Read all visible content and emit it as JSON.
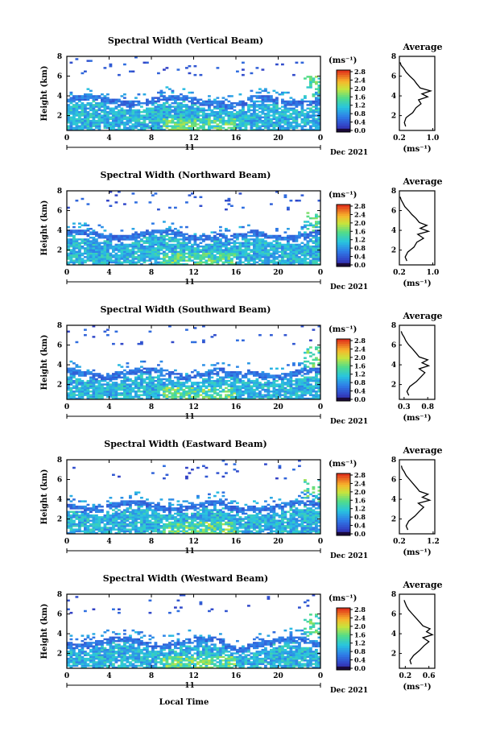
{
  "figure": {
    "x_axis_label": "Local Time",
    "day_label": "11",
    "date_label": "Dec 2021",
    "y_axis_label": "Height (km)",
    "unit_label": "(ms⁻¹)",
    "average_title": "Average"
  },
  "chart_data": [
    {
      "type": "heatmap",
      "title": "Spectral Width (Vertical Beam)",
      "xlabel": "",
      "ylabel": "Height (km)",
      "xlim": [
        0,
        24
      ],
      "ylim": [
        0.5,
        8
      ],
      "x_ticks": [
        "0",
        "4",
        "8",
        "12",
        "16",
        "20",
        "0"
      ],
      "y_ticks": [
        "2",
        "4",
        "6",
        "8"
      ],
      "colorbar": {
        "label": "(ms⁻¹)",
        "range": [
          0,
          2.8
        ],
        "ticks": [
          "0.0",
          "0.4",
          "0.8",
          "1.2",
          "1.6",
          "2.0",
          "2.4",
          "2.8"
        ]
      },
      "echo_top_km": 3.8,
      "average_profile": {
        "title": "Average",
        "xlabel": "(ms⁻¹)",
        "xlim": [
          0.2,
          1.05
        ],
        "x_ticks": [
          "0.2",
          "1.0"
        ],
        "y_ticks": [
          "2",
          "4",
          "6",
          "8"
        ],
        "ylim": [
          0.5,
          8
        ],
        "h": [
          0.9,
          1.3,
          1.8,
          2.3,
          2.8,
          3.2,
          3.6,
          3.9,
          4.2,
          4.5,
          4.8,
          5.2,
          5.6,
          6.0,
          6.4,
          6.8,
          7.1,
          7.4
        ],
        "w": [
          0.35,
          0.32,
          0.36,
          0.52,
          0.6,
          0.72,
          0.66,
          0.88,
          0.74,
          0.95,
          0.7,
          0.62,
          0.55,
          0.45,
          0.36,
          0.3,
          0.24,
          0.22
        ]
      }
    },
    {
      "type": "heatmap",
      "title": "Spectral Width (Northward Beam)",
      "xlabel": "",
      "ylabel": "Height (km)",
      "xlim": [
        0,
        24
      ],
      "ylim": [
        0.5,
        8
      ],
      "x_ticks": [
        "0",
        "4",
        "8",
        "12",
        "16",
        "20",
        "0"
      ],
      "y_ticks": [
        "2",
        "4",
        "6",
        "8"
      ],
      "colorbar": {
        "label": "(ms⁻¹)",
        "range": [
          0,
          2.8
        ],
        "ticks": [
          "0.0",
          "0.4",
          "0.8",
          "1.2",
          "1.6",
          "2.0",
          "2.4",
          "2.8"
        ]
      },
      "echo_top_km": 3.8,
      "average_profile": {
        "title": "Average",
        "xlabel": "(ms⁻¹)",
        "xlim": [
          0.2,
          1.05
        ],
        "x_ticks": [
          "0.2",
          "1.0"
        ],
        "y_ticks": [
          "2",
          "4",
          "6",
          "8"
        ],
        "ylim": [
          0.5,
          8
        ],
        "h": [
          0.9,
          1.3,
          1.8,
          2.3,
          2.8,
          3.2,
          3.6,
          3.9,
          4.2,
          4.5,
          4.8,
          5.2,
          5.6,
          6.0,
          6.4,
          6.8,
          7.1,
          7.4
        ],
        "w": [
          0.38,
          0.34,
          0.4,
          0.55,
          0.62,
          0.78,
          0.64,
          0.9,
          0.7,
          0.86,
          0.68,
          0.6,
          0.5,
          0.42,
          0.33,
          0.28,
          0.24,
          0.22
        ]
      }
    },
    {
      "type": "heatmap",
      "title": "Spectral Width (Southward Beam)",
      "xlabel": "",
      "ylabel": "Height (km)",
      "xlim": [
        0,
        24
      ],
      "ylim": [
        0.5,
        8
      ],
      "x_ticks": [
        "0",
        "4",
        "8",
        "12",
        "16",
        "20",
        "0"
      ],
      "y_ticks": [
        "2",
        "4",
        "6",
        "8"
      ],
      "colorbar": {
        "label": "(ms⁻¹)",
        "range": [
          0,
          2.8
        ],
        "ticks": [
          "0.0",
          "0.4",
          "0.8",
          "1.2",
          "1.6",
          "2.0",
          "2.4",
          "2.8"
        ]
      },
      "echo_top_km": 3.4,
      "average_profile": {
        "title": "Average",
        "xlabel": "(ms⁻¹)",
        "xlim": [
          0.2,
          0.95
        ],
        "x_ticks": [
          "0.3",
          "0.8"
        ],
        "y_ticks": [
          "2",
          "4",
          "6",
          "8"
        ],
        "ylim": [
          0.5,
          8
        ],
        "h": [
          0.9,
          1.3,
          1.8,
          2.3,
          2.8,
          3.2,
          3.6,
          3.9,
          4.2,
          4.5,
          4.8,
          5.2,
          5.6,
          6.0,
          6.4,
          6.8,
          7.1,
          7.4
        ],
        "w": [
          0.4,
          0.36,
          0.42,
          0.56,
          0.66,
          0.74,
          0.62,
          0.82,
          0.68,
          0.8,
          0.62,
          0.55,
          0.48,
          0.4,
          0.34,
          0.3,
          0.26,
          0.24
        ]
      }
    },
    {
      "type": "heatmap",
      "title": "Spectral Width (Eastward Beam)",
      "xlabel": "",
      "ylabel": "Height (km)",
      "xlim": [
        0,
        24
      ],
      "ylim": [
        0.5,
        8
      ],
      "x_ticks": [
        "0",
        "4",
        "8",
        "12",
        "16",
        "20",
        "0"
      ],
      "y_ticks": [
        "2",
        "4",
        "6",
        "8"
      ],
      "colorbar": {
        "label": "(ms⁻¹)",
        "range": [
          0,
          2.8
        ],
        "ticks": [
          "0.0",
          "0.4",
          "0.8",
          "1.2",
          "1.6",
          "2.0",
          "2.4",
          "2.8"
        ]
      },
      "echo_top_km": 3.6,
      "average_profile": {
        "title": "Average",
        "xlabel": "(ms⁻¹)",
        "xlim": [
          0.2,
          1.25
        ],
        "x_ticks": [
          "0.2",
          "1.2"
        ],
        "y_ticks": [
          "2",
          "4",
          "6",
          "8"
        ],
        "ylim": [
          0.5,
          8
        ],
        "h": [
          0.9,
          1.3,
          1.8,
          2.3,
          2.8,
          3.2,
          3.6,
          3.9,
          4.2,
          4.5,
          4.8,
          5.2,
          5.6,
          6.0,
          6.4,
          6.8,
          7.1,
          7.4
        ],
        "w": [
          0.45,
          0.4,
          0.48,
          0.66,
          0.8,
          0.92,
          0.76,
          1.1,
          0.88,
          1.05,
          0.8,
          0.7,
          0.6,
          0.5,
          0.4,
          0.34,
          0.28,
          0.26
        ]
      }
    },
    {
      "type": "heatmap",
      "title": "Spectral Width (Westward Beam)",
      "xlabel": "Local Time",
      "ylabel": "Height (km)",
      "xlim": [
        0,
        24
      ],
      "ylim": [
        0.5,
        8
      ],
      "x_ticks": [
        "0",
        "4",
        "8",
        "12",
        "16",
        "20",
        "0"
      ],
      "y_ticks": [
        "2",
        "4",
        "6",
        "8"
      ],
      "colorbar": {
        "label": "(ms⁻¹)",
        "range": [
          0,
          2.8
        ],
        "ticks": [
          "0.0",
          "0.4",
          "0.8",
          "1.2",
          "1.6",
          "2.0",
          "2.4",
          "2.8"
        ]
      },
      "echo_top_km": 3.4,
      "average_profile": {
        "title": "Average",
        "xlabel": "(ms⁻¹)",
        "xlim": [
          0.1,
          0.7
        ],
        "x_ticks": [
          "0.2",
          "0.6"
        ],
        "y_ticks": [
          "2",
          "4",
          "6",
          "8"
        ],
        "ylim": [
          0.5,
          8
        ],
        "h": [
          0.9,
          1.3,
          1.8,
          2.3,
          2.8,
          3.2,
          3.6,
          3.9,
          4.2,
          4.5,
          4.8,
          5.2,
          5.6,
          6.0,
          6.4,
          6.8,
          7.1,
          7.4
        ],
        "w": [
          0.3,
          0.28,
          0.34,
          0.44,
          0.52,
          0.6,
          0.5,
          0.66,
          0.56,
          0.62,
          0.5,
          0.44,
          0.38,
          0.32,
          0.26,
          0.22,
          0.2,
          0.18
        ]
      }
    }
  ]
}
